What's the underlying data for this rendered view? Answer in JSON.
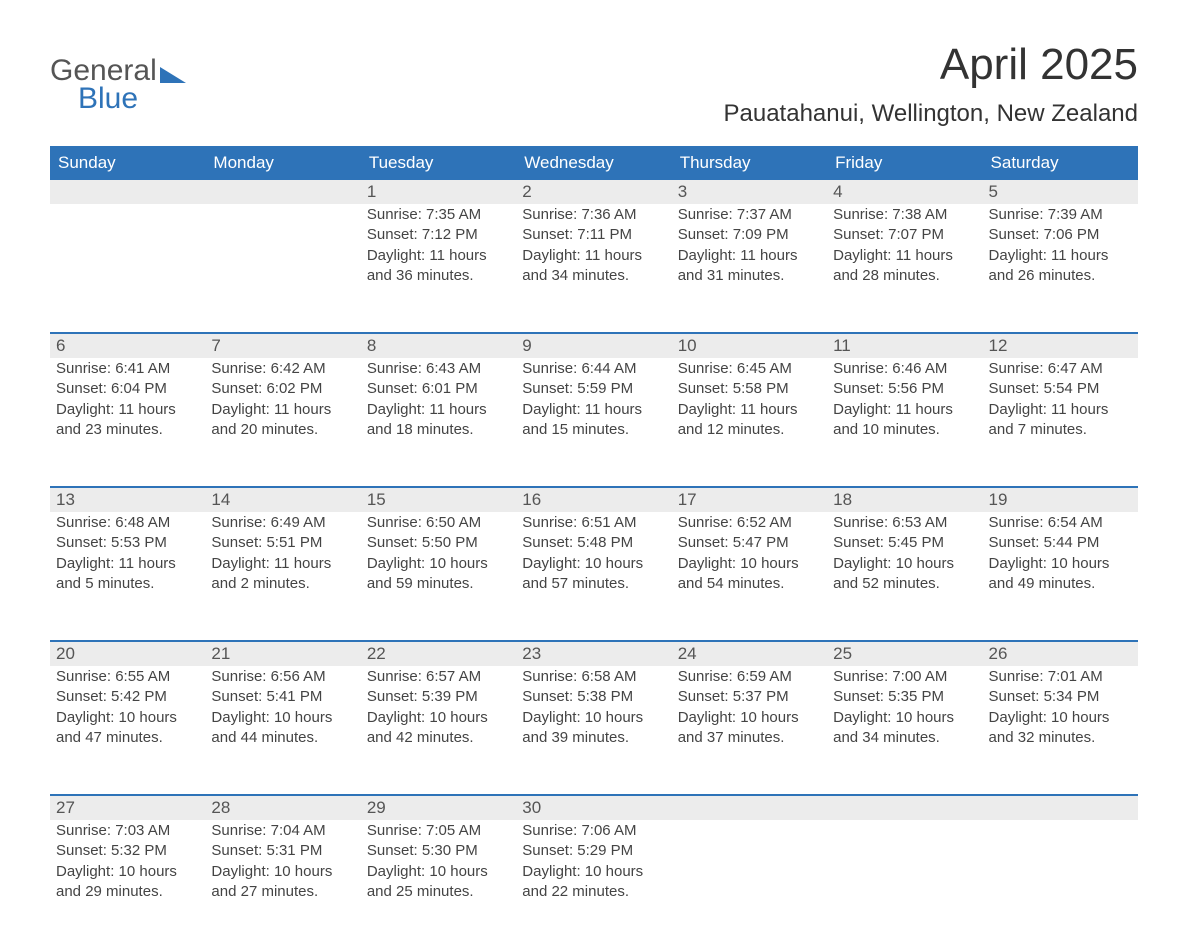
{
  "logo": {
    "line1": "General",
    "line2": "Blue"
  },
  "title": "April 2025",
  "location": "Pauatahanui, Wellington, New Zealand",
  "header_bg": "#2e73b8",
  "daynum_bg": "#ececec",
  "text_color": "#444444",
  "days_of_week": [
    "Sunday",
    "Monday",
    "Tuesday",
    "Wednesday",
    "Thursday",
    "Friday",
    "Saturday"
  ],
  "weeks": [
    [
      {
        "day": "",
        "sunrise": "",
        "sunset": "",
        "daylight": ""
      },
      {
        "day": "",
        "sunrise": "",
        "sunset": "",
        "daylight": ""
      },
      {
        "day": "1",
        "sunrise": "Sunrise: 7:35 AM",
        "sunset": "Sunset: 7:12 PM",
        "daylight": "Daylight: 11 hours and 36 minutes."
      },
      {
        "day": "2",
        "sunrise": "Sunrise: 7:36 AM",
        "sunset": "Sunset: 7:11 PM",
        "daylight": "Daylight: 11 hours and 34 minutes."
      },
      {
        "day": "3",
        "sunrise": "Sunrise: 7:37 AM",
        "sunset": "Sunset: 7:09 PM",
        "daylight": "Daylight: 11 hours and 31 minutes."
      },
      {
        "day": "4",
        "sunrise": "Sunrise: 7:38 AM",
        "sunset": "Sunset: 7:07 PM",
        "daylight": "Daylight: 11 hours and 28 minutes."
      },
      {
        "day": "5",
        "sunrise": "Sunrise: 7:39 AM",
        "sunset": "Sunset: 7:06 PM",
        "daylight": "Daylight: 11 hours and 26 minutes."
      }
    ],
    [
      {
        "day": "6",
        "sunrise": "Sunrise: 6:41 AM",
        "sunset": "Sunset: 6:04 PM",
        "daylight": "Daylight: 11 hours and 23 minutes."
      },
      {
        "day": "7",
        "sunrise": "Sunrise: 6:42 AM",
        "sunset": "Sunset: 6:02 PM",
        "daylight": "Daylight: 11 hours and 20 minutes."
      },
      {
        "day": "8",
        "sunrise": "Sunrise: 6:43 AM",
        "sunset": "Sunset: 6:01 PM",
        "daylight": "Daylight: 11 hours and 18 minutes."
      },
      {
        "day": "9",
        "sunrise": "Sunrise: 6:44 AM",
        "sunset": "Sunset: 5:59 PM",
        "daylight": "Daylight: 11 hours and 15 minutes."
      },
      {
        "day": "10",
        "sunrise": "Sunrise: 6:45 AM",
        "sunset": "Sunset: 5:58 PM",
        "daylight": "Daylight: 11 hours and 12 minutes."
      },
      {
        "day": "11",
        "sunrise": "Sunrise: 6:46 AM",
        "sunset": "Sunset: 5:56 PM",
        "daylight": "Daylight: 11 hours and 10 minutes."
      },
      {
        "day": "12",
        "sunrise": "Sunrise: 6:47 AM",
        "sunset": "Sunset: 5:54 PM",
        "daylight": "Daylight: 11 hours and 7 minutes."
      }
    ],
    [
      {
        "day": "13",
        "sunrise": "Sunrise: 6:48 AM",
        "sunset": "Sunset: 5:53 PM",
        "daylight": "Daylight: 11 hours and 5 minutes."
      },
      {
        "day": "14",
        "sunrise": "Sunrise: 6:49 AM",
        "sunset": "Sunset: 5:51 PM",
        "daylight": "Daylight: 11 hours and 2 minutes."
      },
      {
        "day": "15",
        "sunrise": "Sunrise: 6:50 AM",
        "sunset": "Sunset: 5:50 PM",
        "daylight": "Daylight: 10 hours and 59 minutes."
      },
      {
        "day": "16",
        "sunrise": "Sunrise: 6:51 AM",
        "sunset": "Sunset: 5:48 PM",
        "daylight": "Daylight: 10 hours and 57 minutes."
      },
      {
        "day": "17",
        "sunrise": "Sunrise: 6:52 AM",
        "sunset": "Sunset: 5:47 PM",
        "daylight": "Daylight: 10 hours and 54 minutes."
      },
      {
        "day": "18",
        "sunrise": "Sunrise: 6:53 AM",
        "sunset": "Sunset: 5:45 PM",
        "daylight": "Daylight: 10 hours and 52 minutes."
      },
      {
        "day": "19",
        "sunrise": "Sunrise: 6:54 AM",
        "sunset": "Sunset: 5:44 PM",
        "daylight": "Daylight: 10 hours and 49 minutes."
      }
    ],
    [
      {
        "day": "20",
        "sunrise": "Sunrise: 6:55 AM",
        "sunset": "Sunset: 5:42 PM",
        "daylight": "Daylight: 10 hours and 47 minutes."
      },
      {
        "day": "21",
        "sunrise": "Sunrise: 6:56 AM",
        "sunset": "Sunset: 5:41 PM",
        "daylight": "Daylight: 10 hours and 44 minutes."
      },
      {
        "day": "22",
        "sunrise": "Sunrise: 6:57 AM",
        "sunset": "Sunset: 5:39 PM",
        "daylight": "Daylight: 10 hours and 42 minutes."
      },
      {
        "day": "23",
        "sunrise": "Sunrise: 6:58 AM",
        "sunset": "Sunset: 5:38 PM",
        "daylight": "Daylight: 10 hours and 39 minutes."
      },
      {
        "day": "24",
        "sunrise": "Sunrise: 6:59 AM",
        "sunset": "Sunset: 5:37 PM",
        "daylight": "Daylight: 10 hours and 37 minutes."
      },
      {
        "day": "25",
        "sunrise": "Sunrise: 7:00 AM",
        "sunset": "Sunset: 5:35 PM",
        "daylight": "Daylight: 10 hours and 34 minutes."
      },
      {
        "day": "26",
        "sunrise": "Sunrise: 7:01 AM",
        "sunset": "Sunset: 5:34 PM",
        "daylight": "Daylight: 10 hours and 32 minutes."
      }
    ],
    [
      {
        "day": "27",
        "sunrise": "Sunrise: 7:03 AM",
        "sunset": "Sunset: 5:32 PM",
        "daylight": "Daylight: 10 hours and 29 minutes."
      },
      {
        "day": "28",
        "sunrise": "Sunrise: 7:04 AM",
        "sunset": "Sunset: 5:31 PM",
        "daylight": "Daylight: 10 hours and 27 minutes."
      },
      {
        "day": "29",
        "sunrise": "Sunrise: 7:05 AM",
        "sunset": "Sunset: 5:30 PM",
        "daylight": "Daylight: 10 hours and 25 minutes."
      },
      {
        "day": "30",
        "sunrise": "Sunrise: 7:06 AM",
        "sunset": "Sunset: 5:29 PM",
        "daylight": "Daylight: 10 hours and 22 minutes."
      },
      {
        "day": "",
        "sunrise": "",
        "sunset": "",
        "daylight": ""
      },
      {
        "day": "",
        "sunrise": "",
        "sunset": "",
        "daylight": ""
      },
      {
        "day": "",
        "sunrise": "",
        "sunset": "",
        "daylight": ""
      }
    ]
  ]
}
